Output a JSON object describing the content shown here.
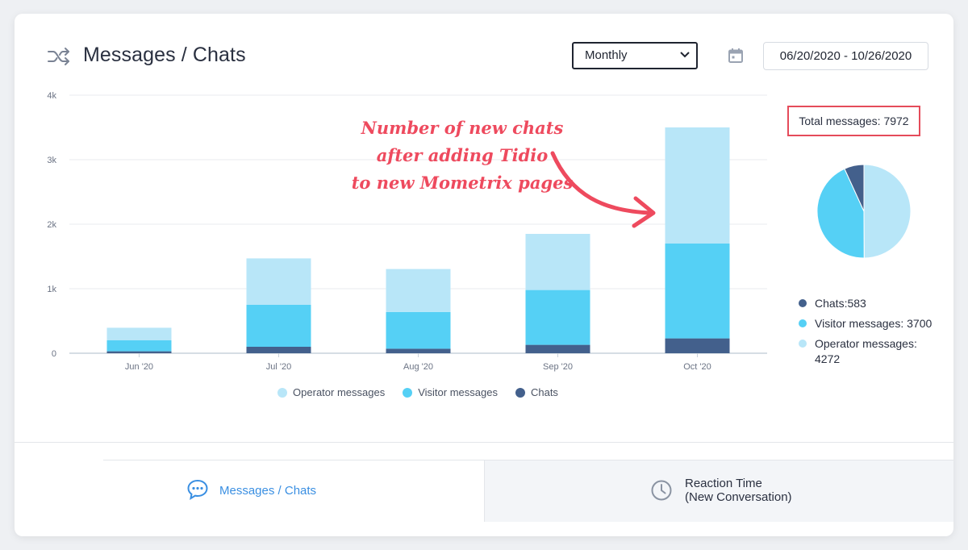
{
  "header": {
    "icon": "shuffle-icon",
    "title": "Messages / Chats",
    "period_select": {
      "value": "Monthly",
      "icon": "chevron-down-icon"
    },
    "calendar_icon": "calendar-icon",
    "date_range": "06/20/2020 - 10/26/2020"
  },
  "annotation": {
    "lines": [
      "Number of new chats",
      "after adding Tidio",
      "to new Mometrix pages"
    ],
    "color": "#ee4a5e"
  },
  "chart_data": {
    "type": "bar",
    "stacked": true,
    "categories": [
      "Jun '20",
      "Jul '20",
      "Aug '20",
      "Sep '20",
      "Oct '20"
    ],
    "series": [
      {
        "name": "Chats",
        "color": "#43608c",
        "values": [
          30,
          100,
          70,
          130,
          230
        ]
      },
      {
        "name": "Visitor messages",
        "color": "#55d0f5",
        "values": [
          170,
          650,
          570,
          850,
          1470
        ]
      },
      {
        "name": "Operator messages",
        "color": "#b8e6f8",
        "values": [
          195,
          720,
          665,
          870,
          1800
        ]
      }
    ],
    "y_ticks": [
      "0",
      "1k",
      "2k",
      "3k",
      "4k"
    ],
    "ylim": [
      0,
      4000
    ],
    "grid": true,
    "legend_placement": "bottom",
    "legend": [
      "Operator messages",
      "Visitor messages",
      "Chats"
    ]
  },
  "summary": {
    "total_label": "Total messages: 7972",
    "pie": [
      {
        "name": "Chats",
        "value": 583,
        "color": "#43608c"
      },
      {
        "name": "Visitor messages",
        "value": 3700,
        "color": "#55d0f5"
      },
      {
        "name": "Operator messages",
        "value": 4272,
        "color": "#b8e6f8"
      }
    ],
    "legend": [
      {
        "label": "Chats:583",
        "color": "#43608c"
      },
      {
        "label": "Visitor messages: 3700",
        "color": "#55d0f5"
      },
      {
        "label": "Operator messages: 4272",
        "color": "#b8e6f8"
      }
    ]
  },
  "tabs": [
    {
      "label": "Messages / Chats",
      "icon": "chat-bubble-icon",
      "active": true
    },
    {
      "label_line1": "Reaction Time",
      "label_line2": "(New Conversation)",
      "icon": "clock-icon",
      "active": false
    }
  ],
  "colors": {
    "accent": "#3a8fe2",
    "highlight": "#e54b5a"
  }
}
